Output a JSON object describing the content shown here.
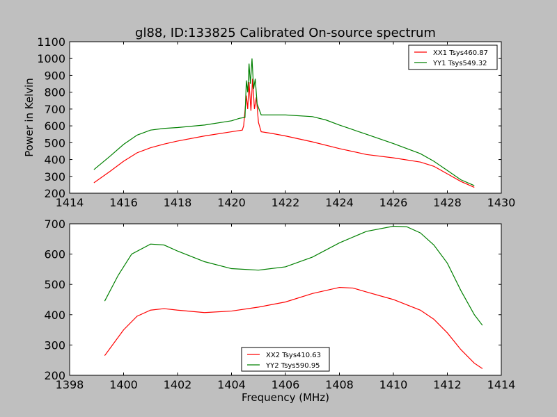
{
  "chart_data": [
    {
      "type": "line",
      "title": "gl88, ID:133825 Calibrated On-source spectrum",
      "xlabel": "",
      "ylabel": "Power in Kelvin",
      "xlim": [
        1414,
        1430
      ],
      "ylim": [
        200,
        1100
      ],
      "xticks": [
        1414,
        1416,
        1418,
        1420,
        1422,
        1424,
        1426,
        1428,
        1430
      ],
      "yticks": [
        200,
        300,
        400,
        500,
        600,
        700,
        800,
        900,
        1000,
        1100
      ],
      "legend_position": "top-right",
      "series": [
        {
          "name": "XX1 Tsys460.87",
          "color": "#ff0000",
          "x": [
            1414.9,
            1415.5,
            1416,
            1416.5,
            1417,
            1417.5,
            1418,
            1419,
            1420,
            1420.4,
            1420.45,
            1420.55,
            1420.6,
            1420.65,
            1420.72,
            1420.78,
            1420.85,
            1420.92,
            1421.0,
            1421.1,
            1421.5,
            1422,
            1423,
            1424,
            1425,
            1426,
            1427,
            1427.5,
            1428,
            1428.5,
            1429
          ],
          "y": [
            262,
            330,
            390,
            440,
            470,
            492,
            510,
            540,
            565,
            575,
            600,
            780,
            700,
            860,
            690,
            880,
            700,
            770,
            620,
            565,
            555,
            540,
            505,
            465,
            430,
            410,
            385,
            360,
            315,
            270,
            235
          ]
        },
        {
          "name": "YY1 Tsys549.32",
          "color": "#008000",
          "x": [
            1414.9,
            1415.5,
            1416,
            1416.5,
            1417,
            1417.5,
            1418,
            1419,
            1420,
            1420.3,
            1420.5,
            1420.55,
            1420.6,
            1420.65,
            1420.7,
            1420.76,
            1420.82,
            1420.88,
            1420.95,
            1421.1,
            1421.5,
            1422,
            1423,
            1423.5,
            1424,
            1425,
            1426,
            1427,
            1427.5,
            1428,
            1428.5,
            1429
          ],
          "y": [
            340,
            420,
            490,
            545,
            575,
            585,
            590,
            605,
            630,
            645,
            650,
            870,
            800,
            970,
            850,
            1000,
            820,
            880,
            730,
            665,
            665,
            665,
            655,
            635,
            605,
            550,
            495,
            435,
            390,
            335,
            280,
            245
          ]
        }
      ]
    },
    {
      "type": "line",
      "title": "",
      "xlabel": "Frequency (MHz)",
      "ylabel": "",
      "xlim": [
        1398,
        1414
      ],
      "ylim": [
        200,
        700
      ],
      "xticks": [
        1398,
        1400,
        1402,
        1404,
        1406,
        1408,
        1410,
        1412,
        1414
      ],
      "yticks": [
        200,
        300,
        400,
        500,
        600,
        700
      ],
      "legend_position": "bottom-center",
      "series": [
        {
          "name": "XX2 Tsys410.63",
          "color": "#ff0000",
          "x": [
            1399.3,
            1400,
            1400.5,
            1401,
            1401.5,
            1402,
            1403,
            1404,
            1405,
            1406,
            1407,
            1408,
            1408.5,
            1409,
            1410,
            1411,
            1411.5,
            1412,
            1412.5,
            1413,
            1413.3
          ],
          "y": [
            265,
            350,
            395,
            415,
            420,
            415,
            407,
            412,
            425,
            442,
            470,
            490,
            488,
            475,
            450,
            415,
            385,
            340,
            285,
            240,
            222
          ]
        },
        {
          "name": "YY2 Tsys590.95",
          "color": "#008000",
          "x": [
            1399.3,
            1399.8,
            1400.3,
            1401,
            1401.5,
            1402,
            1403,
            1404,
            1405,
            1406,
            1407,
            1408,
            1409,
            1410,
            1410.5,
            1411,
            1411.5,
            1412,
            1412.5,
            1413,
            1413.3
          ],
          "y": [
            445,
            530,
            600,
            633,
            630,
            610,
            575,
            552,
            547,
            558,
            590,
            637,
            675,
            692,
            690,
            670,
            630,
            570,
            480,
            400,
            365
          ]
        }
      ]
    }
  ]
}
